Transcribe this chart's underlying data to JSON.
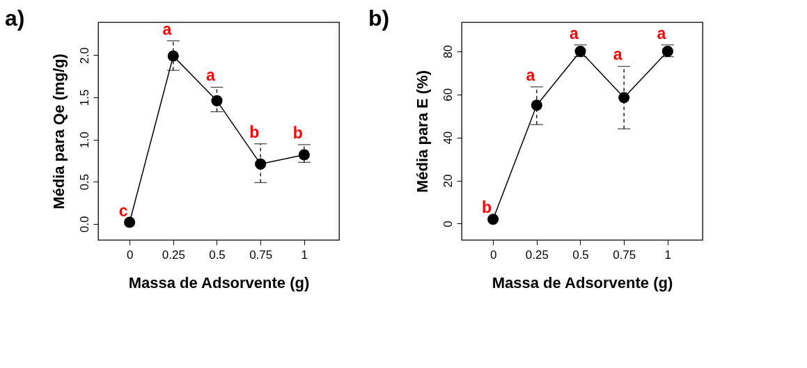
{
  "chart_data": [
    {
      "type": "line",
      "title": "a)",
      "xlabel": "Massa de Adsorvente (g)",
      "ylabel": "Média para Qe (mg/g)",
      "x": [
        0,
        0.25,
        0.5,
        0.75,
        1
      ],
      "series": [
        {
          "color": "#000000",
          "values": [
            0.02,
            1.99,
            1.46,
            0.71,
            0.82
          ],
          "errors": [
            null,
            [
              1.82,
              2.17
            ],
            [
              1.33,
              1.62
            ],
            [
              0.49,
              0.95
            ],
            [
              0.73,
              0.94
            ]
          ]
        }
      ],
      "marker": "circle",
      "line_style": "solid",
      "xlim": [
        -0.18,
        1.2
      ],
      "ylim": [
        -0.19,
        2.39
      ],
      "xticks": [
        0,
        0.25,
        0.5,
        0.75,
        1
      ],
      "yticks": [
        {
          "value": 0,
          "label": "0.0"
        },
        {
          "value": 0.5,
          "label": "0.5"
        },
        {
          "value": 1,
          "label": "1.0"
        },
        {
          "value": 1.5,
          "label": "1.5"
        },
        {
          "value": 2,
          "label": "2.0"
        }
      ],
      "annotations": [
        "c",
        "a",
        "a",
        "b",
        "b"
      ]
    },
    {
      "type": "line",
      "title": "b)",
      "xlabel": "Massa de Adsorvente (g)",
      "ylabel": "Média para E (%)",
      "x": [
        0,
        0.25,
        0.5,
        0.75,
        1
      ],
      "series": [
        {
          "color": "#000000",
          "values": [
            2,
            55,
            80,
            58.5,
            80
          ],
          "errors": [
            null,
            [
              46,
              63.5
            ],
            [
              77.5,
              83
            ],
            [
              44,
              73
            ],
            [
              77.5,
              83
            ]
          ]
        }
      ],
      "marker": "circle",
      "line_style": "solid",
      "xlim": [
        -0.18,
        1.2
      ],
      "ylim": [
        -7.6,
        93.5
      ],
      "xticks": [
        0,
        0.25,
        0.5,
        0.75,
        1
      ],
      "yticks": [
        0,
        20,
        40,
        60,
        80
      ],
      "annotations": [
        "b",
        "a",
        "a",
        "a",
        "a"
      ]
    }
  ]
}
